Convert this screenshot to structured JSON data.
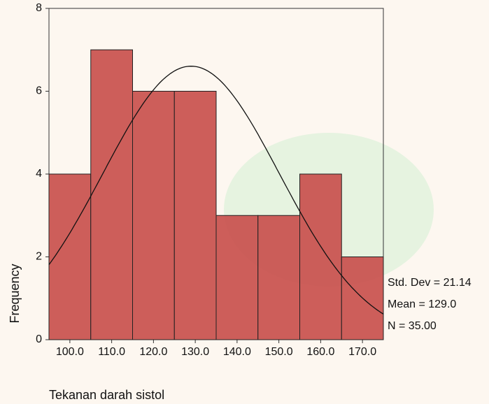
{
  "chart_data": {
    "type": "histogram",
    "x_label": "Tekanan darah sistol",
    "y_label": "Frequency",
    "bins": [
      95,
      105,
      115,
      125,
      135,
      145,
      155,
      165,
      175
    ],
    "values": [
      4,
      7,
      6,
      6,
      3,
      3,
      4,
      2
    ],
    "color": "#c9504d",
    "xlim": [
      95,
      175
    ],
    "xticks": [
      {
        "value": 100,
        "label": "100.0"
      },
      {
        "value": 110,
        "label": "110.0"
      },
      {
        "value": 120,
        "label": "120.0"
      },
      {
        "value": 130,
        "label": "130.0"
      },
      {
        "value": 140,
        "label": "140.0"
      },
      {
        "value": 150,
        "label": "150.0"
      },
      {
        "value": 160,
        "label": "160.0"
      },
      {
        "value": 170,
        "label": "170.0"
      }
    ],
    "ylim": [
      0,
      8
    ],
    "yticks": [
      0,
      2,
      4,
      6,
      8
    ],
    "normal_curve": {
      "std_dev": {
        "value": 21.14,
        "label": "Std. Dev = 21.14"
      },
      "mean": {
        "value": 129.0,
        "label": "Mean = 129.0"
      },
      "n": {
        "value": 35,
        "label": "N = 35.00"
      }
    }
  }
}
